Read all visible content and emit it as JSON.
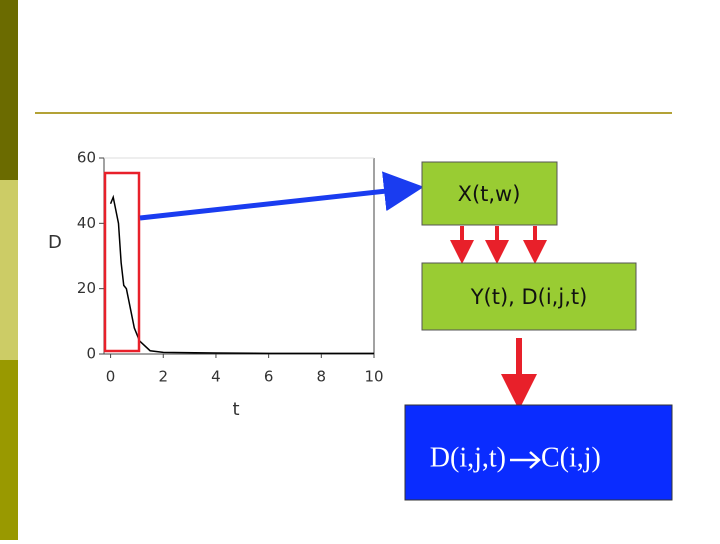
{
  "chart_data": {
    "type": "line",
    "xlabel": "t",
    "ylabel": "D",
    "x": [
      0,
      0.1,
      0.3,
      0.4,
      0.5,
      0.6,
      0.8,
      0.9,
      1.1,
      1.5,
      2,
      4,
      6,
      8,
      10
    ],
    "series": [
      {
        "color": "#000000",
        "values": [
          46,
          48,
          40,
          28,
          21,
          20,
          12,
          8,
          4,
          1,
          0.5,
          0.3,
          0.2,
          0.2,
          0.2
        ]
      }
    ],
    "xlim": [
      -0.25,
      10
    ],
    "xticks": [
      0,
      2,
      4,
      6,
      8,
      10
    ],
    "ylim": [
      0,
      60
    ],
    "yticks": [
      0,
      20,
      40,
      60
    ]
  },
  "diagram": {
    "box1": "X(t,w)",
    "box2": "Y(t), D(i,j,t)",
    "box3_left": "D(i,j,t)",
    "box3_right": "C(i,j)"
  }
}
